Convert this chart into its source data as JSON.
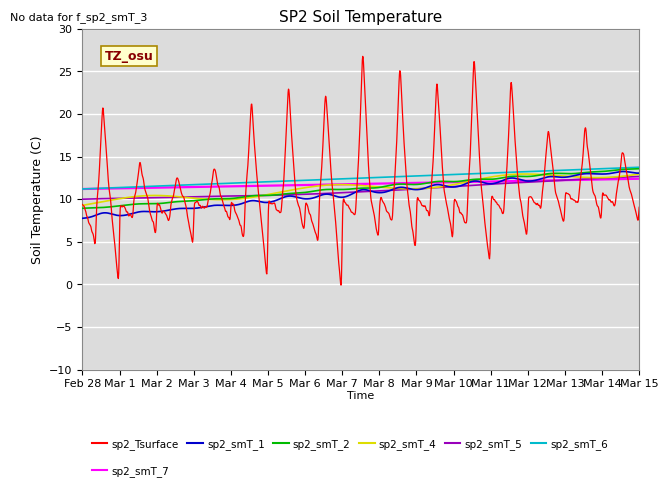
{
  "title": "SP2 Soil Temperature",
  "no_data_text": "No data for f_sp2_smT_3",
  "tz_label": "TZ_osu",
  "ylabel": "Soil Temperature (C)",
  "xlabel": "Time",
  "ylim": [
    -10,
    30
  ],
  "yticks": [
    -10,
    -5,
    0,
    5,
    10,
    15,
    20,
    25,
    30
  ],
  "bg_color": "#dcdcdc",
  "fig_color": "#ffffff",
  "series_colors": {
    "sp2_Tsurface": "#ff0000",
    "sp2_smT_1": "#0000cc",
    "sp2_smT_2": "#00bb00",
    "sp2_smT_4": "#dddd00",
    "sp2_smT_5": "#9900bb",
    "sp2_smT_6": "#00bbcc",
    "sp2_smT_7": "#ff00ff"
  },
  "legend_order": [
    "sp2_Tsurface",
    "sp2_smT_1",
    "sp2_smT_2",
    "sp2_smT_4",
    "sp2_smT_5",
    "sp2_smT_6",
    "sp2_smT_7"
  ],
  "x_tick_labels": [
    "Feb 28",
    "Mar 1",
    "Mar 2",
    "Mar 3",
    "Mar 4",
    "Mar 5",
    "Mar 6",
    "Mar 7",
    "Mar 8",
    "Mar 9",
    "Mar 10",
    "Mar 11",
    "Mar 12",
    "Mar 13",
    "Mar 14",
    "Mar 15"
  ]
}
